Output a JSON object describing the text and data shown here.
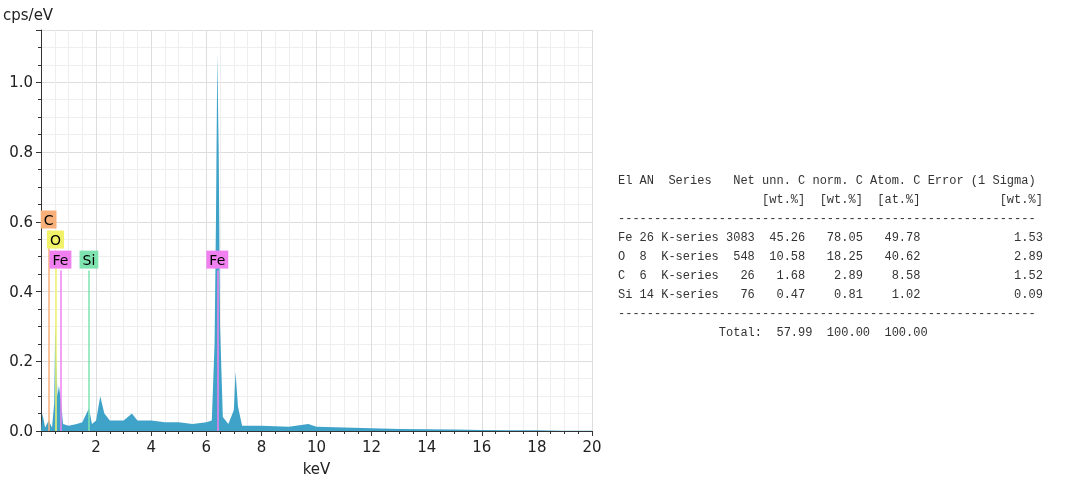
{
  "chart_data": [
    {
      "type": "area",
      "xlabel": "keV",
      "ylabel": "cps/eV",
      "x": [
        0,
        0.05,
        0.15,
        0.28,
        0.4,
        0.48,
        0.52,
        0.55,
        0.6,
        0.65,
        0.72,
        0.8,
        1.0,
        1.3,
        1.5,
        1.74,
        1.85,
        2.0,
        2.15,
        2.3,
        2.5,
        3.0,
        3.3,
        3.5,
        4.0,
        4.5,
        5.0,
        5.5,
        6.0,
        6.2,
        6.3,
        6.35,
        6.4,
        6.45,
        6.5,
        6.6,
        6.8,
        7.0,
        7.06,
        7.15,
        7.3,
        8,
        9,
        9.7,
        10,
        11,
        12,
        13,
        14,
        15,
        16,
        17,
        18,
        19,
        20
      ],
      "series": [
        {
          "color": "#3fa3c9",
          "values": [
            0,
            0.05,
            0.01,
            0.03,
            0.01,
            0.08,
            0.32,
            0.21,
            0.1,
            0.13,
            0.09,
            0.02,
            0.015,
            0.02,
            0.025,
            0.065,
            0.02,
            0.03,
            0.1,
            0.05,
            0.03,
            0.03,
            0.05,
            0.03,
            0.03,
            0.025,
            0.025,
            0.02,
            0.025,
            0.03,
            0.25,
            0.6,
            1.08,
            0.8,
            0.3,
            0.04,
            0.02,
            0.06,
            0.17,
            0.07,
            0.015,
            0.015,
            0.012,
            0.02,
            0.012,
            0.01,
            0.008,
            0.006,
            0.005,
            0.004,
            0.003,
            0.002,
            0.002,
            0.001,
            0.001
          ]
        }
      ],
      "xlim": [
        0,
        20
      ],
      "xticks": [
        2,
        4,
        6,
        8,
        10,
        12,
        14,
        16,
        18,
        20
      ],
      "ylim": [
        0,
        1.15
      ],
      "yticks": [
        {
          "value": 0,
          "label": "0.0"
        },
        0.2,
        0.4,
        0.6,
        0.8,
        {
          "value": 1,
          "label": "1.0"
        }
      ],
      "grid": true,
      "ref_lines": [
        {
          "axis": "x",
          "value": 0.277,
          "label": "C",
          "color": "#f7b07a"
        },
        {
          "axis": "x",
          "value": 0.525,
          "label": "O",
          "color": "#f2f26a"
        },
        {
          "axis": "x",
          "value": 0.705,
          "label": "Fe",
          "color": "#f080f0"
        },
        {
          "axis": "x",
          "value": 1.74,
          "label": "Si",
          "color": "#7fe3b0"
        },
        {
          "axis": "x",
          "value": 6.4,
          "label": "Fe",
          "color": "#f080f0"
        }
      ]
    },
    {
      "type": "other",
      "annotations": [
        "El AN  Series   Net unn. C norm. C Atom. C Error (1 Sigma)",
        "                    [wt.%]  [wt.%]  [at.%]           [wt.%]",
        "----------------------------------------------------------",
        "Fe 26 K-series 3083  45.26   78.05   49.78             1.53",
        "O  8  K-series  548  10.58   18.25   40.62             2.89",
        "C  6  K-series   26   1.68    2.89    8.58             1.52",
        "Si 14 K-series   76   0.47    0.81    1.02             0.09",
        "----------------------------------------------------------",
        "              Total:  57.99  100.00  100.00"
      ]
    }
  ]
}
